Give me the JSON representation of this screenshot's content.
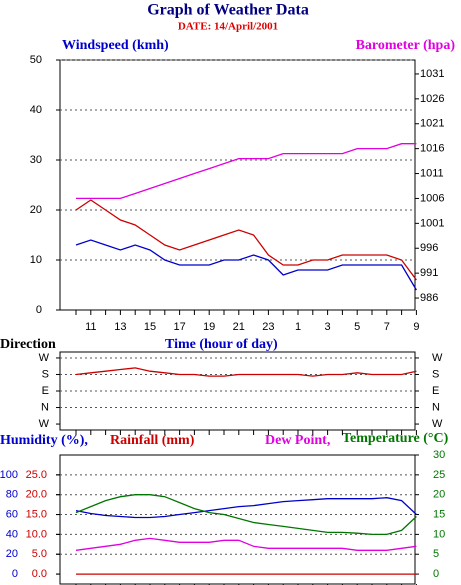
{
  "chart_data": [
    {
      "type": "line",
      "title": "Graph of Weather Data",
      "subtitle": "DATE: 14/April/2001",
      "y_label": "Windspeed (kmh)",
      "y2_label": "Barometer (hpa)",
      "categories": [
        null,
        "11",
        null,
        "13",
        null,
        "15",
        null,
        "17",
        null,
        "19",
        null,
        "21",
        null,
        "23",
        null,
        "1",
        null,
        "3",
        null,
        "5",
        null,
        "7",
        null,
        "9"
      ],
      "ylim": [
        0,
        50
      ],
      "yticks": [
        0,
        10,
        20,
        30,
        40,
        50
      ],
      "y2lim": [
        983.6,
        1033.8
      ],
      "y2ticks": [
        986,
        991,
        996,
        1001,
        1006,
        1011,
        1016,
        1021,
        1026,
        1031
      ],
      "grid": true,
      "series": [
        {
          "color": "#0000cc",
          "values": [
            13,
            14,
            13,
            12,
            13,
            12,
            10,
            9,
            9,
            9,
            10,
            10,
            11,
            10,
            7,
            8,
            8,
            8,
            9,
            9,
            9,
            9,
            9,
            4
          ]
        },
        {
          "color": "#cc0000",
          "values": [
            20,
            22,
            20,
            18,
            17,
            15,
            13,
            12,
            13,
            14,
            15,
            16,
            15,
            11,
            9,
            9,
            10,
            10,
            11,
            11,
            11,
            11,
            10,
            6
          ]
        },
        {
          "color": "#e000e0",
          "axis": "y2",
          "values": [
            1006,
            1006,
            1006,
            1006,
            1007,
            1008,
            1009,
            1010,
            1011,
            1012,
            1013,
            1014,
            1014,
            1014,
            1015,
            1015,
            1015,
            1015,
            1015,
            1016,
            1016,
            1016,
            1017,
            1017
          ]
        }
      ]
    },
    {
      "type": "line",
      "y_label": "Direction",
      "x_label": "Time (hour of day)",
      "ylim": [
        -0.36,
        4.36
      ],
      "yticks": [
        {
          "value": 0,
          "label": "W"
        },
        {
          "value": 1,
          "label": "N"
        },
        {
          "value": 2,
          "label": "E"
        },
        {
          "value": 3,
          "label": "S"
        },
        {
          "value": 4,
          "label": "W"
        }
      ],
      "grid": true,
      "series": [
        {
          "color": "#cc0000",
          "values": [
            3,
            3.1,
            3.2,
            3.3,
            3.4,
            3.2,
            3.1,
            3,
            3,
            2.9,
            2.9,
            3,
            3,
            3,
            3,
            3,
            2.9,
            3,
            3,
            3.1,
            3,
            3,
            3,
            3.2
          ]
        }
      ]
    },
    {
      "type": "line",
      "y_label": "Humidity (%),",
      "y3_label": "Rainfall (mm)",
      "y2_labels": [
        "Dew Point,",
        "Temperature (°C)"
      ],
      "ylim": [
        -10,
        120
      ],
      "yticks": [
        0,
        20,
        40,
        60,
        80,
        100
      ],
      "y3lim": [
        -2.5,
        30
      ],
      "y3ticks": [
        {
          "value": 0,
          "label": "0.0"
        },
        {
          "value": 5,
          "label": "5.0"
        },
        {
          "value": 10,
          "label": "10.0"
        },
        {
          "value": 15,
          "label": "15.0"
        },
        {
          "value": 20,
          "label": "20.0"
        },
        {
          "value": 25,
          "label": "25.0"
        }
      ],
      "y2lim": [
        -2.5,
        30
      ],
      "y2ticks": [
        0,
        5,
        10,
        15,
        20,
        25,
        30
      ],
      "grid": true,
      "series": [
        {
          "color": "#0000cc",
          "values": [
            64,
            61,
            59,
            58,
            57,
            57,
            58,
            60,
            62,
            64,
            66,
            68,
            69,
            71,
            73,
            74,
            75,
            76,
            76,
            76,
            76,
            77,
            74,
            60
          ]
        },
        {
          "color": "#cc0000",
          "axis": "y3",
          "values": [
            0,
            0,
            0,
            0,
            0,
            0,
            0,
            0,
            0,
            0,
            0,
            0,
            0,
            0,
            0,
            0,
            0,
            0,
            0,
            0,
            0,
            0,
            0,
            0
          ]
        },
        {
          "color": "#e000e0",
          "axis": "y2",
          "values": [
            6,
            6.5,
            7,
            7.5,
            8.5,
            9,
            8.5,
            8,
            8,
            8,
            8.5,
            8.5,
            7,
            6.5,
            6.5,
            6.5,
            6.5,
            6.5,
            6.5,
            6,
            6,
            6,
            6.5,
            7
          ]
        },
        {
          "color": "#007700",
          "axis": "y2",
          "values": [
            15.5,
            17,
            18.5,
            19.5,
            20,
            20,
            19.5,
            18,
            16.5,
            15.5,
            15,
            14,
            13,
            12.5,
            12,
            11.5,
            11,
            10.5,
            10.5,
            10.3,
            10,
            10,
            11,
            14.5
          ]
        }
      ]
    }
  ]
}
